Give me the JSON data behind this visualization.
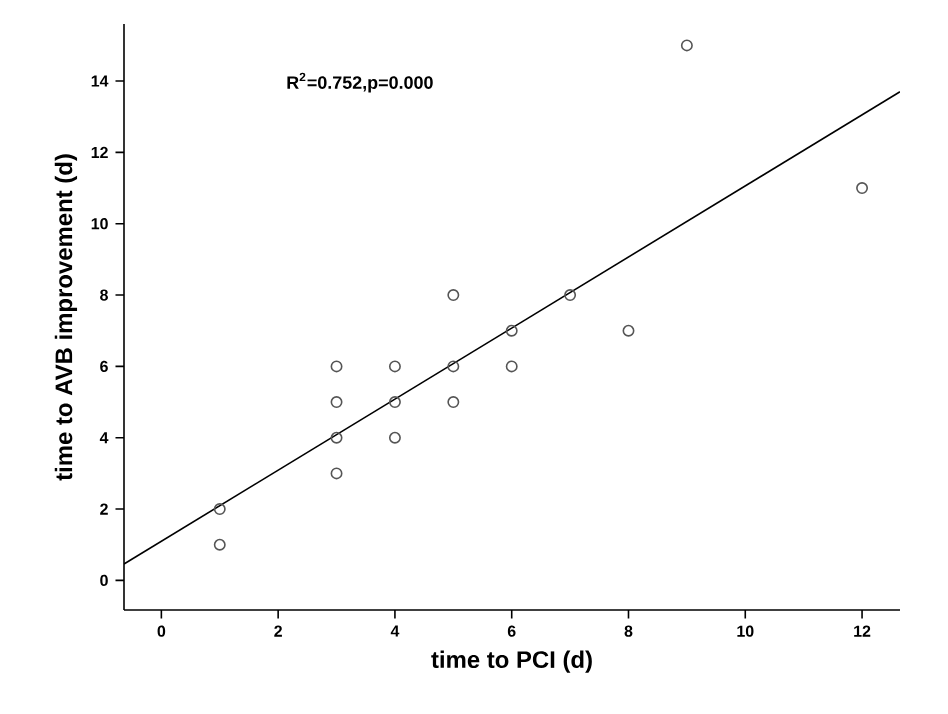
{
  "chart_data": {
    "type": "scatter",
    "xlabel": "time to PCI (d)",
    "ylabel": "time to AVB improvement (d)",
    "annotations": [
      "R$^{2}$=0.752,p=0.000"
    ],
    "xlim": [
      -0.64,
      12.65
    ],
    "ylim": [
      -0.83,
      15.6
    ],
    "xticks": [
      0,
      2,
      4,
      6,
      8,
      10,
      12
    ],
    "yticks": [
      0,
      2,
      4,
      6,
      8,
      10,
      12,
      14
    ],
    "grid": false,
    "marker": "circle",
    "series": [
      {
        "color": "#555555",
        "x": [
          1,
          1,
          3,
          3,
          3,
          3,
          4,
          4,
          4,
          5,
          5,
          5,
          6,
          6,
          7,
          8,
          9,
          12
        ],
        "values": [
          2,
          1,
          6,
          5,
          4,
          3,
          6,
          5,
          4,
          8,
          6,
          5,
          7,
          6,
          8,
          7,
          15,
          11
        ]
      },
      {
        "type": "line",
        "color": "#000000",
        "marker": "none",
        "x": [
          -0.64,
          12.65
        ],
        "values": [
          0.46,
          13.7
        ]
      }
    ]
  }
}
